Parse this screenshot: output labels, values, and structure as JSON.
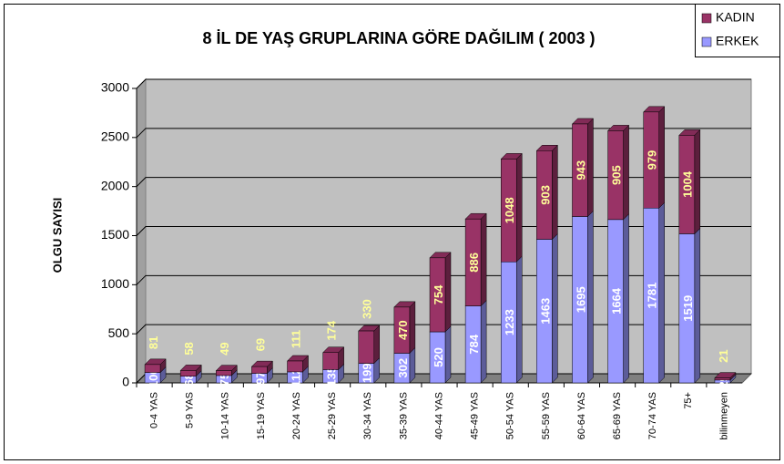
{
  "chart_data": {
    "type": "bar",
    "stacked": true,
    "title": "8 İL DE YAŞ GRUPLARINA GÖRE DAĞILIM ( 2003 )",
    "y_label": "OLGU SAYISI",
    "categories": [
      "0-4 YAS",
      "5-9 YAS",
      "10-14 YAS",
      "15-19 YAS",
      "20-24 YAS",
      "25-29 YAS",
      "30-34 YAS",
      "35-39 YAS",
      "40-44 YAS",
      "45-49 YAS",
      "50-54 YAS",
      "55-59 YAS",
      "60-64 YAS",
      "65-69 YAS",
      "70-74 YAS",
      "75+",
      "bilinmeyen"
    ],
    "series": [
      {
        "name": "ERKEK",
        "color": "#9999ff",
        "label_color": "#ffffff",
        "values": [
          106,
          68,
          75,
          97,
          112,
          135,
          199,
          302,
          520,
          784,
          1233,
          1463,
          1695,
          1664,
          1781,
          1519,
          29
        ]
      },
      {
        "name": "KADIN",
        "color": "#993366",
        "label_color": "#ffff99",
        "values": [
          81,
          58,
          49,
          69,
          111,
          174,
          330,
          470,
          754,
          886,
          1048,
          903,
          943,
          905,
          979,
          1004,
          21
        ]
      }
    ],
    "ylim": [
      0,
      3000
    ],
    "yticks": [
      0,
      500,
      1000,
      1500,
      2000,
      2500,
      3000
    ],
    "grid": true,
    "wall_color": "#c0c0c0",
    "legend": "top-right"
  }
}
